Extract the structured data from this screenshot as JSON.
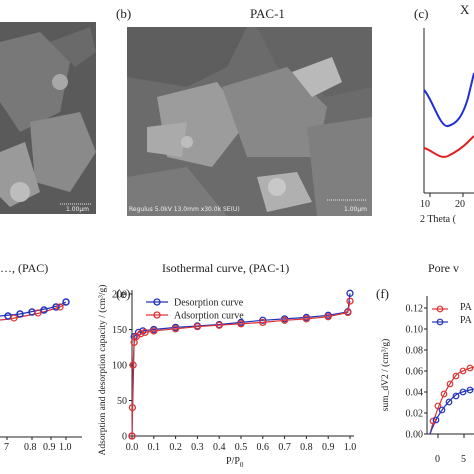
{
  "panels": {
    "a": {
      "caption": "…, (PAC)",
      "scalebar": "1.00μm",
      "tick_labels": [
        "7",
        "0.8",
        "0.9",
        "1.0"
      ]
    },
    "b": {
      "label": "(b)",
      "title": "PAC-1",
      "sem_info": "Regulus 5.0kV 13.0mm x30.0k SE(U)",
      "scalebar": "1.00μm"
    },
    "c": {
      "label": "(c)",
      "title": "X",
      "x_ticks": [
        "10",
        "20"
      ],
      "x_label": "2 Theta (",
      "caption": "Pore v"
    },
    "e": {
      "label": "(e)",
      "caption": "Isothermal curve, (PAC-1)"
    },
    "f": {
      "label": "(f)",
      "y_label": "sum_dV2 / (cm³/g)",
      "y_ticks": [
        "0.00",
        "0.02",
        "0.04",
        "0.06",
        "0.08",
        "0.10",
        "0.12"
      ],
      "x_ticks": [
        "0",
        "5"
      ],
      "legend": [
        "PA",
        "PA"
      ]
    }
  },
  "chart_data": {
    "type": "line",
    "title": "",
    "xlabel": "P/P0",
    "ylabel": "Adsorption and desorption capacity / (cm³/g)",
    "xlim": [
      0.0,
      1.0
    ],
    "ylim": [
      0,
      200
    ],
    "x_ticks": [
      "0.0",
      "0.1",
      "0.2",
      "0.3",
      "0.4",
      "0.5",
      "0.6",
      "0.7",
      "0.8",
      "0.9",
      "1.0"
    ],
    "y_ticks": [
      "0",
      "50",
      "100",
      "150",
      "200"
    ],
    "legend_position": "top-left",
    "series": [
      {
        "name": "Desorption curve",
        "color": "#2233bb",
        "x": [
          0.0,
          0.01,
          0.03,
          0.05,
          0.1,
          0.2,
          0.3,
          0.4,
          0.5,
          0.6,
          0.7,
          0.8,
          0.9,
          0.99,
          1.0
        ],
        "y": [
          0,
          140,
          146,
          148,
          150,
          153,
          155,
          157,
          160,
          163,
          165,
          167,
          170,
          175,
          201
        ]
      },
      {
        "name": "Adsorption curve",
        "color": "#dd3333",
        "x": [
          0.0,
          0.002,
          0.005,
          0.01,
          0.02,
          0.04,
          0.06,
          0.1,
          0.2,
          0.3,
          0.4,
          0.5,
          0.6,
          0.7,
          0.8,
          0.9,
          0.99,
          1.0
        ],
        "y": [
          0,
          40,
          100,
          132,
          140,
          144,
          146,
          148,
          151,
          154,
          156,
          158,
          160,
          163,
          165,
          168,
          174,
          190
        ]
      }
    ]
  }
}
